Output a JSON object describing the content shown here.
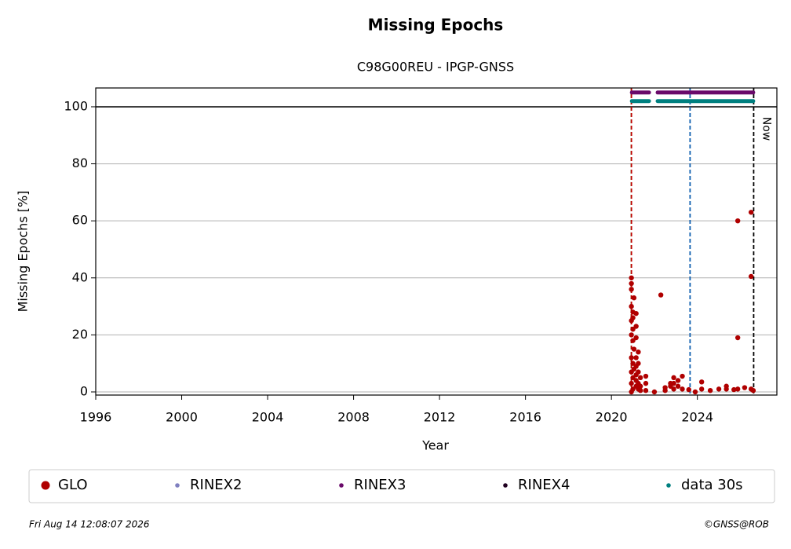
{
  "chart_data": {
    "type": "scatter",
    "title": "Missing Epochs",
    "subtitle": "C98G00REU - IPGP-GNSS",
    "x_label": "Year",
    "y_label": "Missing Epochs [%]",
    "xlim": [
      1996,
      2027.7
    ],
    "ylim": [
      -1.1,
      106.6
    ],
    "xticks": [
      1996,
      2000,
      2004,
      2008,
      2012,
      2016,
      2020,
      2024
    ],
    "yticks": [
      0,
      20,
      40,
      60,
      80,
      100
    ],
    "grid": true,
    "hlines": [
      100
    ],
    "vlines": [
      {
        "x": 2020.93,
        "color": "#008000"
      },
      {
        "x": 2020.93,
        "color": "#c00000"
      },
      {
        "x": 2023.66,
        "color": "#1060b0"
      },
      {
        "x": 2026.62,
        "color": "#000000",
        "label": "Now"
      }
    ],
    "series": [
      {
        "name": "GLO",
        "color": "#b00000",
        "mode": "points",
        "x": [
          2020.93,
          2020.93,
          2020.93,
          2020.93,
          2020.93,
          2020.93,
          2020.93,
          2020.93,
          2020.93,
          2020.93,
          2021.0,
          2021.0,
          2021.0,
          2021.0,
          2021.0,
          2021.0,
          2021.0,
          2021.05,
          2021.05,
          2021.05,
          2021.15,
          2021.15,
          2021.15,
          2021.15,
          2021.15,
          2021.15,
          2021.15,
          2021.15,
          2021.25,
          2021.25,
          2021.25,
          2021.25,
          2021.25,
          2021.35,
          2021.35,
          2021.35,
          2021.6,
          2021.6,
          2021.6,
          2022.0,
          2022.3,
          2022.5,
          2022.5,
          2022.75,
          2022.75,
          2022.9,
          2022.9,
          2022.9,
          2023.1,
          2023.1,
          2023.3,
          2023.3,
          2023.6,
          2023.9,
          2024.2,
          2024.2,
          2024.6,
          2025.0,
          2025.35,
          2025.35,
          2025.7,
          2025.88,
          2025.88,
          2025.88,
          2026.2,
          2026.5,
          2026.5,
          2026.5,
          2026.6
        ],
        "values": [
          40,
          38,
          36,
          30,
          25,
          20,
          12,
          7,
          3,
          0,
          28,
          26,
          22,
          18,
          10,
          5,
          1,
          33,
          15,
          8,
          27.5,
          23,
          19,
          12,
          9,
          6,
          4,
          2,
          14,
          10,
          7,
          3,
          1,
          5,
          2,
          0.5,
          5.5,
          3,
          0.5,
          0,
          34,
          1.5,
          0.5,
          3,
          2,
          5,
          3,
          1,
          4,
          2,
          5.5,
          1,
          0.8,
          0,
          3.5,
          1,
          0.5,
          1,
          2,
          1,
          0.8,
          60,
          19,
          1,
          1.5,
          63,
          40.5,
          1,
          0.5
        ]
      },
      {
        "name": "RINEX2",
        "color": "#8080c0",
        "mode": "points",
        "x": [],
        "values": []
      },
      {
        "name": "RINEX3",
        "color": "#6a0a6a",
        "mode": "line",
        "x": [
          2020.95,
          2021.75,
          2021.9,
          2022.15,
          2026.6
        ],
        "values": [
          105,
          105,
          null,
          105,
          105
        ]
      },
      {
        "name": "RINEX4",
        "color": "#200020",
        "mode": "points",
        "x": [],
        "values": []
      },
      {
        "name": "data 30s",
        "color": "#008080",
        "mode": "line",
        "x": [
          2020.95,
          2021.75,
          2021.9,
          2022.15,
          2026.6
        ],
        "values": [
          102,
          102,
          null,
          102,
          102
        ]
      }
    ],
    "footer_left": "Fri Aug 14 12:08:07 2026",
    "footer_right": "©GNSS@ROB"
  }
}
